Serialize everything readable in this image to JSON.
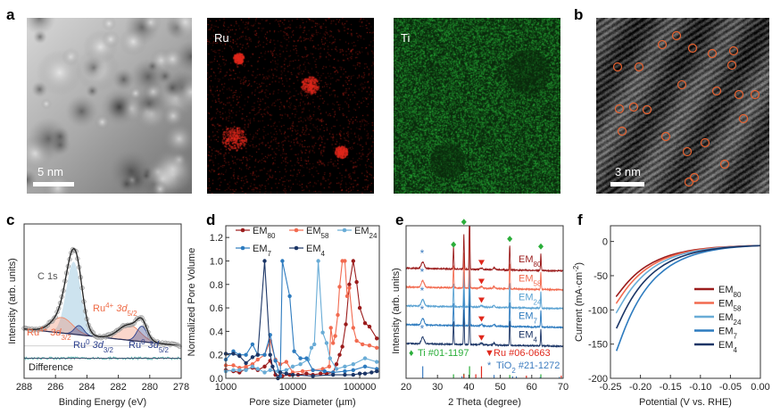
{
  "panel_labels": {
    "a": "a",
    "b": "b",
    "c": "c",
    "d": "d",
    "e": "e",
    "f": "f"
  },
  "images": {
    "haadf": {
      "scale_bar": "5 nm"
    },
    "ru_map": {
      "label": "Ru",
      "color": "#e0281c"
    },
    "ti_map": {
      "label": "Ti",
      "color": "#2bb83c"
    },
    "hrtem": {
      "scale_bar": "3 nm",
      "marker_color": "#e8622f",
      "marker_count": 23
    }
  },
  "chart_data": [
    {
      "panel": "c",
      "type": "line",
      "xlabel": "Binding Energy (eV)",
      "ylabel": "Intensity (arb. units)",
      "xlim": [
        288,
        278
      ],
      "ylim": [
        0,
        1
      ],
      "x_ticks": [
        "288",
        "286",
        "284",
        "282",
        "280",
        "278"
      ],
      "grid": false,
      "background": {
        "start": [
          288,
          0.32
        ],
        "end": [
          278,
          0.21
        ]
      },
      "components": [
        {
          "name": "C 1s",
          "center_eV": 284.85,
          "height": 0.47,
          "fwhm": 1.1,
          "color": "#bcd9ea"
        },
        {
          "name": "Ru4+ 3d3/2",
          "center_eV": 285.6,
          "height": 0.1,
          "fwhm": 1.6,
          "color": "#f08a6a"
        },
        {
          "name": "Ru0 3d3/2",
          "center_eV": 284.5,
          "height": 0.06,
          "fwhm": 0.7,
          "color": "#2b3f8c"
        },
        {
          "name": "Ru4+ 3d5/2",
          "center_eV": 281.3,
          "height": 0.1,
          "fwhm": 1.6,
          "color": "#f08a6a"
        },
        {
          "name": "Ru0 3d5/2",
          "center_eV": 280.5,
          "height": 0.1,
          "fwhm": 0.75,
          "color": "#2b3f8c"
        }
      ],
      "difference_level": 0.13,
      "annotations": {
        "c1s": "C 1s",
        "ru4_52": {
          "base": "Ru",
          "sup": "4+",
          "orb": " 3d",
          "sub": "5/2"
        },
        "ru4_32": {
          "base": "Ru",
          "sup": "4+",
          "orb": " 3d",
          "sub": "3/2"
        },
        "ru0_32": {
          "base": "Ru",
          "sup": "0",
          "orb": " 3d",
          "sub": "3/2"
        },
        "ru0_52": {
          "base": "Ru",
          "sup": "0",
          "orb": " 3d",
          "sub": "5/2"
        },
        "difference": "Difference"
      }
    },
    {
      "panel": "d",
      "type": "line",
      "xscale": "log",
      "xlabel": "Pore size Diameter (µm)",
      "ylabel": "Normalized Pore Volume",
      "xlim": [
        1000,
        196000
      ],
      "ylim": [
        0,
        1.3
      ],
      "x_ticks": [
        {
          "v": 1000,
          "t": "1000"
        },
        {
          "v": 10000,
          "t": "10000"
        },
        {
          "v": 100000,
          "t": "100000"
        }
      ],
      "y_ticks": [
        {
          "v": 0,
          "t": "0.0"
        },
        {
          "v": 0.2,
          "t": "0.2"
        },
        {
          "v": 0.4,
          "t": "0.4"
        },
        {
          "v": 0.6,
          "t": "0.6"
        },
        {
          "v": 0.8,
          "t": "0.8"
        },
        {
          "v": 1.0,
          "t": "1.0"
        },
        {
          "v": 1.2,
          "t": "1.2"
        }
      ],
      "legend": "top",
      "series": [
        {
          "name": {
            "base": "EM",
            "sub": "80"
          },
          "color": "#9b1c1c",
          "x": [
            1000,
            1300,
            1600,
            2000,
            2500,
            3000,
            3800,
            4600,
            5500,
            7000,
            9000,
            12000,
            16000,
            20000,
            26000,
            32000,
            40000,
            45000,
            50000,
            55000,
            62000,
            70000,
            80000,
            90000,
            100000,
            120000,
            140000,
            180000
          ],
          "y": [
            0.07,
            0.06,
            0.05,
            0.08,
            0.09,
            0.07,
            0.1,
            0.15,
            0.03,
            0.02,
            0.03,
            0.03,
            0.04,
            0.03,
            0.04,
            0.04,
            0.05,
            0.12,
            0.2,
            0.27,
            0.46,
            0.8,
            1.0,
            0.82,
            0.6,
            0.47,
            0.44,
            0.34
          ]
        },
        {
          "name": {
            "base": "EM",
            "sub": "58"
          },
          "color": "#f26a4f",
          "x": [
            1000,
            1300,
            1600,
            2000,
            2500,
            3000,
            3800,
            4600,
            5500,
            6500,
            8000,
            10000,
            14000,
            20000,
            28000,
            35000,
            37000,
            40000,
            43000,
            47000,
            50000,
            55000,
            60000,
            65000,
            70000,
            80000,
            90000,
            110000,
            140000,
            180000
          ],
          "y": [
            0.11,
            0.11,
            0.09,
            0.1,
            0.12,
            0.16,
            0.2,
            0.32,
            0.16,
            0.12,
            0.14,
            0.05,
            0.06,
            0.07,
            0.08,
            0.1,
            0.43,
            0.3,
            0.36,
            0.54,
            0.78,
            1.0,
            1.0,
            0.7,
            0.77,
            0.43,
            0.32,
            0.29,
            0.28,
            0.26
          ]
        },
        {
          "name": {
            "base": "EM",
            "sub": "24"
          },
          "color": "#69acd6",
          "x": [
            1000,
            1300,
            1600,
            2000,
            2500,
            3000,
            3800,
            4600,
            6000,
            8000,
            10000,
            13000,
            17000,
            19000,
            21000,
            24000,
            28000,
            32000,
            36000,
            45000,
            60000,
            80000,
            120000,
            180000
          ],
          "y": [
            0.06,
            0.07,
            0.07,
            0.07,
            0.1,
            0.08,
            0.05,
            0.07,
            0.06,
            0.07,
            0.1,
            0.12,
            0.16,
            0.26,
            0.29,
            1.0,
            0.39,
            0.3,
            0.17,
            0.08,
            0.1,
            0.12,
            0.17,
            0.14
          ]
        },
        {
          "name": {
            "base": "EM",
            "sub": "7"
          },
          "color": "#2d7bbf",
          "x": [
            1000,
            1300,
            1600,
            2000,
            2500,
            3000,
            3800,
            4600,
            5500,
            6500,
            7000,
            9000,
            10500,
            13000,
            16000,
            20000,
            30000,
            40000,
            60000,
            80000,
            120000,
            180000
          ],
          "y": [
            0.16,
            0.23,
            0.2,
            0.2,
            0.29,
            0.2,
            0.2,
            0.37,
            0.15,
            0.02,
            1.0,
            0.7,
            0.23,
            0.17,
            0.17,
            0.07,
            0.06,
            0.05,
            0.06,
            0.07,
            0.1,
            0.08
          ]
        },
        {
          "name": {
            "base": "EM",
            "sub": "4"
          },
          "color": "#1b3566",
          "x": [
            1000,
            1300,
            1600,
            2000,
            2500,
            3000,
            3800,
            4600,
            5000,
            6000,
            6500,
            8000,
            10000,
            20000,
            40000,
            60000,
            80000,
            100000,
            120000,
            150000,
            180000
          ],
          "y": [
            0.21,
            0.21,
            0.19,
            0.13,
            0.18,
            0.2,
            1.0,
            0.2,
            0.1,
            0.0,
            0.05,
            0.04,
            0.03,
            0.02,
            0.03,
            0.03,
            0.03,
            0.04,
            0.04,
            0.05,
            0.06
          ]
        }
      ]
    },
    {
      "panel": "e",
      "type": "line",
      "xlabel": "2 Theta (degree)",
      "ylabel": "Intensity (arb. units)",
      "xlim": [
        20,
        70
      ],
      "ylim": [
        -1.7,
        6.4
      ],
      "x_ticks": [
        "20",
        "30",
        "40",
        "50",
        "60",
        "70"
      ],
      "peaks": [
        {
          "two_theta": 25.3,
          "height": 0.35,
          "width": 0.45
        },
        {
          "two_theta": 35.1,
          "height": 1.2,
          "width": 0.12
        },
        {
          "two_theta": 38.4,
          "height": 1.9,
          "width": 0.12
        },
        {
          "two_theta": 40.2,
          "height": 3.5,
          "width": 0.12
        },
        {
          "two_theta": 44.0,
          "height": 0.08,
          "width": 0.4
        },
        {
          "two_theta": 48.0,
          "height": 0.1,
          "width": 0.3
        },
        {
          "two_theta": 53.0,
          "height": 1.3,
          "width": 0.12
        },
        {
          "two_theta": 62.9,
          "height": 0.9,
          "width": 0.12
        }
      ],
      "series": [
        {
          "name": {
            "base": "EM",
            "sub": "80"
          },
          "color": "#9b1c1c",
          "offset": 4
        },
        {
          "name": {
            "base": "EM",
            "sub": "58"
          },
          "color": "#f26a4f",
          "offset": 3
        },
        {
          "name": {
            "base": "EM",
            "sub": "24"
          },
          "color": "#5aa2d2",
          "offset": 2
        },
        {
          "name": {
            "base": "EM",
            "sub": "7"
          },
          "color": "#2d7bbf",
          "offset": 1
        },
        {
          "name": {
            "base": "EM",
            "sub": "4"
          },
          "color": "#1b3566",
          "offset": 0
        }
      ],
      "references": [
        {
          "label": "Ti #01-1197",
          "marker": "♦",
          "color": "#2bae3a",
          "sticks": [
            [
              35.1,
              0.3
            ],
            [
              38.4,
              0.35
            ],
            [
              40.2,
              0.9
            ],
            [
              53.0,
              0.25
            ],
            [
              62.9,
              0.3
            ]
          ]
        },
        {
          "label": "Ru #06-0663",
          "marker": "▼",
          "color": "#e0281c",
          "sticks": [
            [
              38.4,
              0.3
            ],
            [
              42.2,
              0.3
            ],
            [
              44.0,
              0.9
            ],
            [
              58.3,
              0.2
            ],
            [
              69.4,
              0.2
            ]
          ]
        },
        {
          "label": {
            "base": "TiO",
            "sub": "2",
            "rest": " #21-1272"
          },
          "marker": "*",
          "color": "#3c7cc0",
          "sticks": [
            [
              25.3,
              0.9
            ],
            [
              37.8,
              0.15
            ],
            [
              48.0,
              0.25
            ],
            [
              53.9,
              0.15
            ],
            [
              55.1,
              0.15
            ],
            [
              62.7,
              0.1
            ],
            [
              68.8,
              0.1
            ]
          ]
        }
      ]
    },
    {
      "panel": "f",
      "type": "line",
      "xlabel": "Potential (V vs. RHE)",
      "ylabel": {
        "base": "Current (mA·cm",
        "sup": "-2",
        "rest": ")"
      },
      "xlim": [
        -0.25,
        0
      ],
      "ylim": [
        -200,
        23
      ],
      "x_ticks": [
        {
          "v": -0.25,
          "t": "-0.25"
        },
        {
          "v": -0.2,
          "t": "-0.20"
        },
        {
          "v": -0.15,
          "t": "-0.15"
        },
        {
          "v": -0.1,
          "t": "-0.10"
        },
        {
          "v": -0.05,
          "t": "-0.05"
        },
        {
          "v": 0,
          "t": "0.00"
        }
      ],
      "y_ticks": [
        {
          "v": 0,
          "t": "0"
        },
        {
          "v": -50,
          "t": "-50"
        },
        {
          "v": -100,
          "t": "-100"
        },
        {
          "v": -150,
          "t": "-150"
        },
        {
          "v": -200,
          "t": "-200"
        }
      ],
      "legend": "right",
      "x": [
        -0.24,
        -0.22,
        -0.2,
        -0.18,
        -0.16,
        -0.14,
        -0.12,
        -0.1,
        -0.08,
        -0.06,
        -0.04,
        -0.02,
        0
      ],
      "series": [
        {
          "name": {
            "base": "EM",
            "sub": "80"
          },
          "color": "#9b1c1c",
          "y": [
            -80,
            -57.5,
            -41.6,
            -30.5,
            -22.8,
            -17.4,
            -13.7,
            -11.1,
            -9.2,
            -7.9,
            -7.1,
            -6.4,
            -6
          ]
        },
        {
          "name": {
            "base": "EM",
            "sub": "58"
          },
          "color": "#f26a4f",
          "y": [
            -90,
            -64.2,
            -46.2,
            -33.7,
            -25,
            -18.9,
            -14.7,
            -11.7,
            -9.6,
            -8.2,
            -7.2,
            -6.5,
            -6
          ]
        },
        {
          "name": {
            "base": "EM",
            "sub": "24"
          },
          "color": "#69acd6",
          "y": [
            -104,
            -74,
            -53,
            -38.3,
            -28.2,
            -21,
            -16.1,
            -12.7,
            -10.3,
            -8.6,
            -7.4,
            -6.6,
            -6
          ]
        },
        {
          "name": {
            "base": "EM",
            "sub": "7"
          },
          "color": "#2d7bbf",
          "y": [
            -160,
            -113,
            -80,
            -57,
            -41,
            -29.7,
            -22,
            -16.5,
            -12.7,
            -10,
            -8.2,
            -6.9,
            -6
          ]
        },
        {
          "name": {
            "base": "EM",
            "sub": "4"
          },
          "color": "#1b3566",
          "y": [
            -127,
            -90,
            -64,
            -46,
            -33.4,
            -24.6,
            -18.5,
            -14.2,
            -11.2,
            -9.2,
            -7.7,
            -6.7,
            -6
          ]
        }
      ]
    }
  ]
}
